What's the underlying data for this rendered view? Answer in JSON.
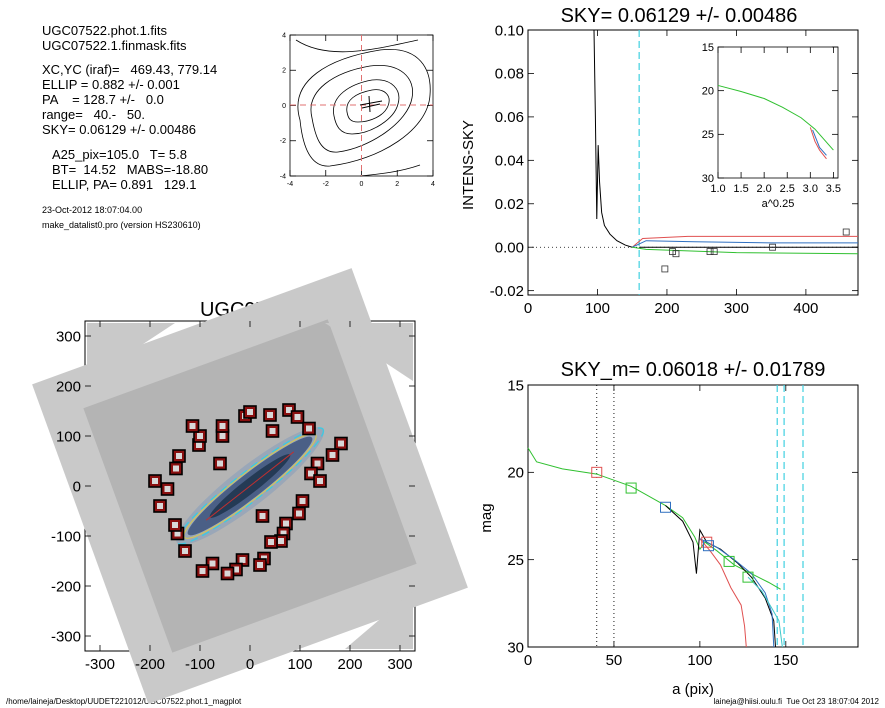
{
  "info": {
    "files": [
      "UGC07522.phot.1.fits",
      "UGC07522.1.finmask.fits"
    ],
    "params": [
      "XC,YC (iraf)=   469.43, 779.14",
      "ELLIP = 0.882 +/- 0.001",
      "PA    = 128.7 +/-   0.0",
      "range=   40.-   50.",
      "SKY= 0.06129 +/- 0.00486"
    ],
    "mags": [
      "A25_pix=105.0   T= 5.8",
      "BT=  14.52   MABS=-18.80",
      "ELLIP, PA= 0.891   129.1"
    ],
    "timestamp": "23-Oct-2012 18:07:04.00",
    "program": "make_datalist0.pro (version HS230610)"
  },
  "footer": {
    "left": "/home/laineja/Desktop/UUDET221012/UGC07522.phot.1_magplot",
    "right": "laineja@hiisi.oulu.fi  Tue Oct 23 18:07:04 2012"
  },
  "chart_data": [
    {
      "type": "contour",
      "title": "",
      "xticks": [
        "-4",
        "-2",
        "0",
        "2",
        "4"
      ],
      "yticks": [
        "-4",
        "-2",
        "0",
        "2",
        "4"
      ],
      "xlim": [
        -4,
        4
      ],
      "ylim": [
        -4,
        4
      ],
      "crosshair": {
        "x": 0,
        "y": 0,
        "color": "#e07070"
      }
    },
    {
      "type": "line",
      "title": "SKY= 0.06129 +/- 0.00486",
      "ylabel": "INTENS-SKY",
      "xlabel": "",
      "xlim": [
        0,
        475
      ],
      "ylim": [
        -0.022,
        0.1
      ],
      "xticks": [
        "0",
        "100",
        "200",
        "300",
        "400"
      ],
      "yticks": [
        "-0.02",
        "0.00",
        "0.02",
        "0.04",
        "0.06",
        "0.08",
        "0.10"
      ],
      "series": [
        {
          "color": "#000000",
          "points": [
            [
              95,
              0.1
            ],
            [
              97,
              0.06
            ],
            [
              99,
              0.013
            ],
            [
              101,
              0.047
            ],
            [
              103,
              0.03
            ],
            [
              106,
              0.016
            ],
            [
              110,
              0.01
            ],
            [
              118,
              0.006
            ],
            [
              128,
              0.003
            ],
            [
              140,
              0.001
            ],
            [
              150,
              0.0
            ]
          ]
        },
        {
          "color": "#e05050",
          "points": [
            [
              150,
              0.0
            ],
            [
              165,
              0.004
            ],
            [
              230,
              0.005
            ],
            [
              475,
              0.005
            ]
          ]
        },
        {
          "color": "#3070c0",
          "points": [
            [
              150,
              0.0
            ],
            [
              170,
              0.003
            ],
            [
              240,
              0.0025
            ],
            [
              350,
              0.002
            ],
            [
              475,
              0.002
            ]
          ]
        },
        {
          "color": "#30c030",
          "points": [
            [
              150,
              0.0
            ],
            [
              170,
              -0.001
            ],
            [
              300,
              -0.0025
            ],
            [
              475,
              -0.003
            ]
          ]
        },
        {
          "color": "#000000",
          "points": [
            [
              160,
              0.0
            ],
            [
              475,
              0.0
            ]
          ]
        }
      ],
      "markers": [
        [
          197,
          -0.01
        ],
        [
          208,
          -0.002
        ],
        [
          213,
          -0.003
        ],
        [
          262,
          -0.002
        ],
        [
          268,
          -0.002
        ],
        [
          352,
          0.0
        ],
        [
          458,
          0.007
        ]
      ],
      "sky_line_x": 160,
      "inset": {
        "xlabel": "a^0.25",
        "xlim": [
          1.0,
          3.6
        ],
        "ylim": [
          15,
          30
        ],
        "xticks": [
          "1.0",
          "1.5",
          "2.0",
          "2.5",
          "3.0",
          "3.5"
        ],
        "yticks": [
          "15",
          "20",
          "25",
          "30"
        ],
        "series": [
          {
            "color": "#30c030",
            "points": [
              [
                1.0,
                19.4
              ],
              [
                1.5,
                20.1
              ],
              [
                2.0,
                20.9
              ],
              [
                2.4,
                21.9
              ],
              [
                2.8,
                23.1
              ],
              [
                3.1,
                24.4
              ],
              [
                3.3,
                25.6
              ],
              [
                3.5,
                26.8
              ]
            ]
          },
          {
            "color": "#e05050",
            "points": [
              [
                3.0,
                24.2
              ],
              [
                3.1,
                25.8
              ],
              [
                3.2,
                26.8
              ],
              [
                3.35,
                27.8
              ]
            ]
          },
          {
            "color": "#3070c0",
            "points": [
              [
                3.05,
                24.5
              ],
              [
                3.2,
                26.5
              ],
              [
                3.35,
                27.4
              ]
            ]
          }
        ]
      }
    },
    {
      "type": "image",
      "title": "UGC07522",
      "xlim": [
        -330,
        330
      ],
      "ylim": [
        -330,
        330
      ],
      "xticks": [
        "-300",
        "-200",
        "-100",
        "0",
        "100",
        "200",
        "300"
      ],
      "yticks": [
        "-300",
        "-200",
        "-100",
        "0",
        "100",
        "200",
        "300"
      ],
      "masked_boxes": [
        [
          -10,
          140
        ],
        [
          0,
          148
        ],
        [
          40,
          142
        ],
        [
          78,
          152
        ],
        [
          95,
          138
        ],
        [
          118,
          115
        ],
        [
          182,
          85
        ],
        [
          165,
          62
        ],
        [
          135,
          45
        ],
        [
          122,
          25
        ],
        [
          140,
          10
        ],
        [
          105,
          -30
        ],
        [
          98,
          -55
        ],
        [
          72,
          -75
        ],
        [
          67,
          -95
        ],
        [
          62,
          -110
        ],
        [
          42,
          -112
        ],
        [
          28,
          -145
        ],
        [
          20,
          -158
        ],
        [
          -15,
          -148
        ],
        [
          -28,
          -167
        ],
        [
          -45,
          -175
        ],
        [
          -75,
          -155
        ],
        [
          -95,
          -170
        ],
        [
          -130,
          -130
        ],
        [
          -145,
          -95
        ],
        [
          -150,
          -78
        ],
        [
          -180,
          -40
        ],
        [
          -165,
          -6
        ],
        [
          -190,
          10
        ],
        [
          -148,
          35
        ],
        [
          -142,
          60
        ],
        [
          -102,
          82
        ],
        [
          -100,
          100
        ],
        [
          -55,
          100
        ],
        [
          -55,
          120
        ],
        [
          -60,
          45
        ],
        [
          -115,
          120
        ],
        [
          45,
          110
        ],
        [
          25,
          -60
        ]
      ],
      "ellipse": {
        "a": 185,
        "b": 24,
        "pa_deg": 38
      }
    },
    {
      "type": "line",
      "title": "SKY_m=  0.06018 +/- 0.01789",
      "ylabel": "mag",
      "xlabel": "a (pix)",
      "xlim": [
        0,
        192
      ],
      "ylim": [
        15,
        30
      ],
      "xticks": [
        "0",
        "50",
        "100",
        "150"
      ],
      "yticks": [
        "15",
        "20",
        "25",
        "30"
      ],
      "vlines_dotted": [
        40,
        50
      ],
      "vlines_dashed": [
        145,
        149,
        160
      ],
      "series": [
        {
          "color": "#30c030",
          "points": [
            [
              0,
              18.6
            ],
            [
              5,
              19.4
            ],
            [
              20,
              19.8
            ],
            [
              40,
              20.1
            ],
            [
              60,
              20.8
            ],
            [
              80,
              21.9
            ],
            [
              90,
              22.6
            ],
            [
              97,
              23.7
            ],
            [
              100,
              24.4
            ],
            [
              103,
              24.0
            ],
            [
              110,
              24.5
            ],
            [
              120,
              25.3
            ],
            [
              130,
              25.8
            ],
            [
              140,
              26.3
            ],
            [
              147,
              26.7
            ]
          ]
        },
        {
          "color": "#000000",
          "points": [
            [
              80,
              21.9
            ],
            [
              90,
              22.8
            ],
            [
              96,
              24.0
            ],
            [
              98,
              25.8
            ],
            [
              100,
              23.3
            ],
            [
              104,
              24.0
            ],
            [
              112,
              24.4
            ],
            [
              122,
              25.2
            ],
            [
              130,
              26.0
            ],
            [
              138,
              27.2
            ],
            [
              143,
              28.5
            ],
            [
              144,
              30
            ]
          ]
        },
        {
          "color": "#e05050",
          "points": [
            [
              100,
              23.8
            ],
            [
              106,
              24.5
            ],
            [
              112,
              25.3
            ],
            [
              118,
              26.6
            ],
            [
              124,
              27.6
            ],
            [
              126,
              28.8
            ],
            [
              127,
              30
            ]
          ]
        },
        {
          "color": "#3070c0",
          "points": [
            [
              100,
              23.8
            ],
            [
              110,
              24.3
            ],
            [
              120,
              25.0
            ],
            [
              130,
              25.8
            ],
            [
              138,
              26.9
            ],
            [
              142,
              28.1
            ],
            [
              143,
              30
            ]
          ]
        },
        {
          "color": "#40c8c8",
          "points": [
            [
              128,
              26.0
            ],
            [
              136,
              26.8
            ],
            [
              142,
              27.8
            ],
            [
              146,
              28.5
            ],
            [
              148,
              30
            ]
          ]
        }
      ],
      "squares": [
        {
          "x": 40,
          "y": 20.0,
          "color": "#e05050"
        },
        {
          "x": 60,
          "y": 20.9,
          "color": "#30c030"
        },
        {
          "x": 80,
          "y": 22.0,
          "color": "#3070c0"
        },
        {
          "x": 104,
          "y": 24.0,
          "color": "#e05050"
        },
        {
          "x": 105,
          "y": 24.2,
          "color": "#3070c0"
        },
        {
          "x": 117,
          "y": 25.1,
          "color": "#30c030"
        },
        {
          "x": 128,
          "y": 26.0,
          "color": "#30c030"
        }
      ]
    }
  ]
}
